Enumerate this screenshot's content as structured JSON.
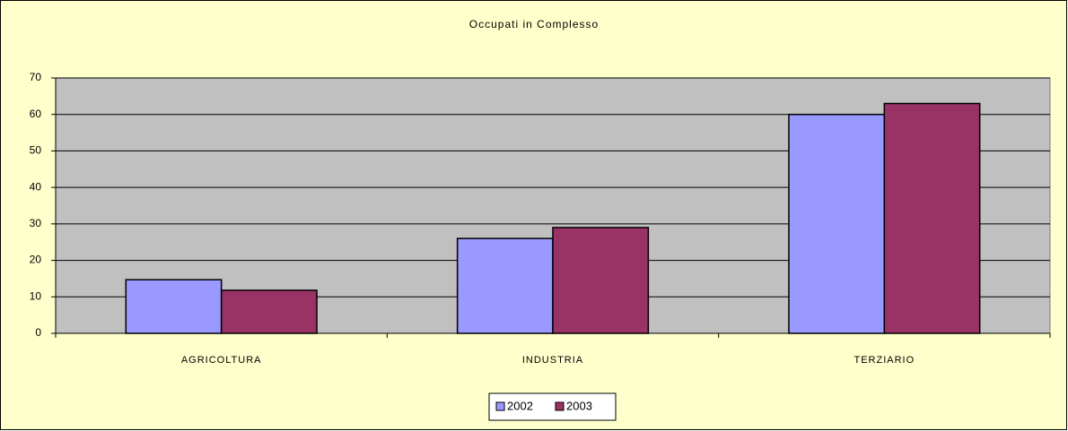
{
  "chart_data": {
    "type": "bar",
    "title": "Occupati in Complesso",
    "categories": [
      "AGRICOLTURA",
      "INDUSTRIA",
      "TERZIARIO"
    ],
    "series": [
      {
        "name": "2002",
        "color": "#9999ff",
        "values": [
          14.7,
          26,
          60
        ]
      },
      {
        "name": "2003",
        "color": "#993366",
        "values": [
          11.8,
          29,
          63
        ]
      }
    ],
    "ylim": [
      0,
      70
    ],
    "yticks": [
      0,
      10,
      20,
      30,
      40,
      50,
      60,
      70
    ],
    "grid": true,
    "legend": "bottom"
  }
}
